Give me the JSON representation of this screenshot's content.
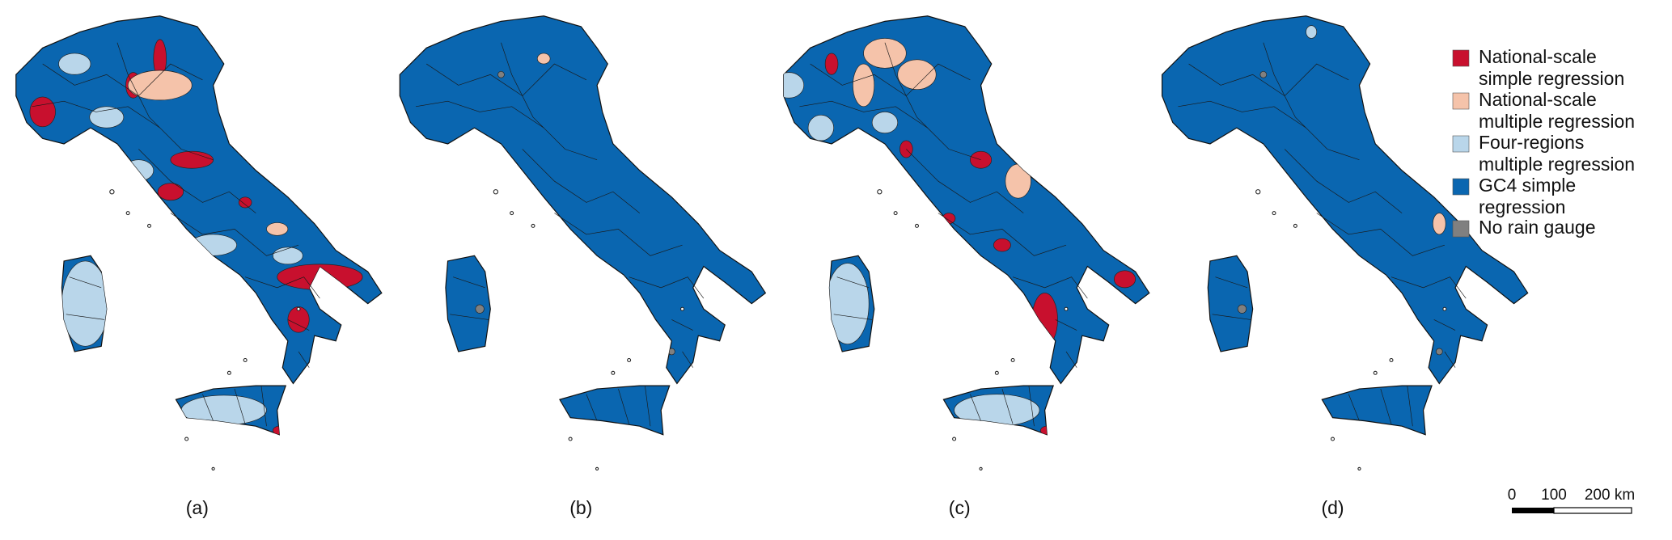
{
  "panels": [
    {
      "label": "(a)"
    },
    {
      "label": "(b)"
    },
    {
      "label": "(c)"
    },
    {
      "label": "(d)"
    }
  ],
  "legend": [
    {
      "lines": [
        "National-scale",
        "simple regression"
      ],
      "color": "#c8102e"
    },
    {
      "lines": [
        "National-scale",
        "multiple regression"
      ],
      "color": "#f5c3aa"
    },
    {
      "lines": [
        "Four-regions",
        "multiple regression"
      ],
      "color": "#b9d6ea"
    },
    {
      "lines": [
        "GC4 simple",
        "regression"
      ],
      "color": "#0a66b0"
    },
    {
      "lines": [
        "No rain gauge"
      ],
      "color": "#808080"
    }
  ],
  "scale_bar": {
    "labels": [
      "0",
      "100",
      "200 km"
    ]
  }
}
